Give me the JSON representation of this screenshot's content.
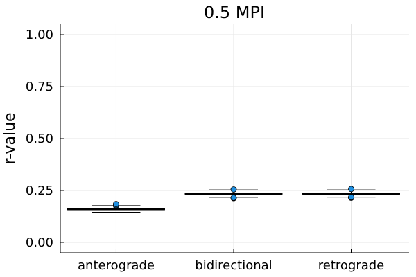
{
  "chart_data": {
    "type": "box",
    "title": "0.5 MPI",
    "xlabel": "",
    "ylabel": "r-value",
    "categories": [
      "anterograde",
      "bidirectional",
      "retrograde"
    ],
    "ylim": [
      -0.05,
      1.05
    ],
    "yticks": [
      0.0,
      0.25,
      0.5,
      0.75,
      1.0
    ],
    "ytick_labels": [
      "0.00",
      "0.25",
      "0.50",
      "0.75",
      "1.00"
    ],
    "grid": true,
    "legend": "none",
    "box_color": "#000000",
    "point_color": "#1f8fe0",
    "boxes": [
      {
        "category": "anterograde",
        "median": 0.16,
        "q1": 0.157,
        "q3": 0.163,
        "whisker_low": 0.145,
        "whisker_high": 0.177,
        "points": [
          0.175,
          0.18,
          0.185
        ]
      },
      {
        "category": "bidirectional",
        "median": 0.235,
        "q1": 0.232,
        "q3": 0.238,
        "whisker_low": 0.217,
        "whisker_high": 0.253,
        "points": [
          0.213,
          0.215,
          0.255
        ]
      },
      {
        "category": "retrograde",
        "median": 0.235,
        "q1": 0.232,
        "q3": 0.238,
        "whisker_low": 0.218,
        "whisker_high": 0.253,
        "points": [
          0.215,
          0.218,
          0.257
        ]
      }
    ]
  }
}
